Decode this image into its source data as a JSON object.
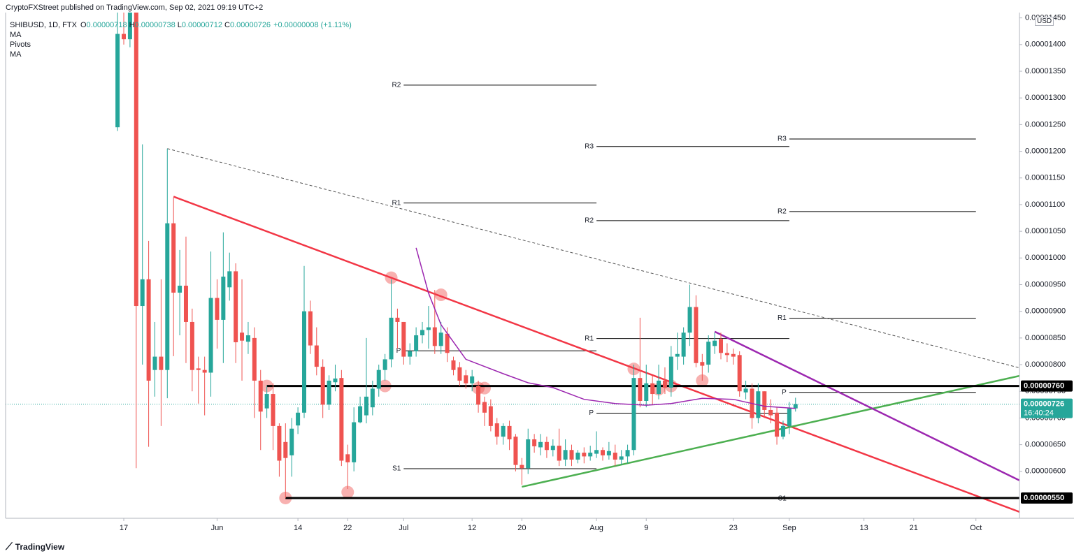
{
  "header": "CryptoFXStreet published on TradingView.com, Sep 02, 2021 09:19 UTC+2",
  "footer": "TradingView",
  "chart_data": {
    "type": "candlestick",
    "symbol": "SHIBUSD, 1D, FTX",
    "ohlc_legend": [
      {
        "label": "O",
        "value": "0.00000718"
      },
      {
        "label": "H",
        "value": "0.00000738"
      },
      {
        "label": "L",
        "value": "0.00000712"
      },
      {
        "label": "C",
        "value": "0.00000726"
      }
    ],
    "change": "+0.00000008 (+1.11%)",
    "indicators": [
      "MA",
      "Pivots",
      "MA"
    ],
    "currency": "USD",
    "x": [
      "2021-05-16",
      "2021-05-17",
      "2021-05-18",
      "2021-05-19",
      "2021-05-20",
      "2021-05-21",
      "2021-05-22",
      "2021-05-23",
      "2021-05-24",
      "2021-05-25",
      "2021-05-26",
      "2021-05-27",
      "2021-05-28",
      "2021-05-29",
      "2021-05-30",
      "2021-05-31",
      "2021-06-01",
      "2021-06-02",
      "2021-06-03",
      "2021-06-04",
      "2021-06-05",
      "2021-06-06",
      "2021-06-07",
      "2021-06-08",
      "2021-06-09",
      "2021-06-10",
      "2021-06-11",
      "2021-06-12",
      "2021-06-13",
      "2021-06-14",
      "2021-06-15",
      "2021-06-16",
      "2021-06-17",
      "2021-06-18",
      "2021-06-19",
      "2021-06-20",
      "2021-06-21",
      "2021-06-22",
      "2021-06-23",
      "2021-06-24",
      "2021-06-25",
      "2021-06-26",
      "2021-06-27",
      "2021-06-28",
      "2021-06-29",
      "2021-06-30",
      "2021-07-01",
      "2021-07-02",
      "2021-07-03",
      "2021-07-04",
      "2021-07-05",
      "2021-07-06",
      "2021-07-07",
      "2021-07-08",
      "2021-07-09",
      "2021-07-10",
      "2021-07-11",
      "2021-07-12",
      "2021-07-13",
      "2021-07-14",
      "2021-07-15",
      "2021-07-16",
      "2021-07-17",
      "2021-07-18",
      "2021-07-19",
      "2021-07-20",
      "2021-07-21",
      "2021-07-22",
      "2021-07-23",
      "2021-07-24",
      "2021-07-25",
      "2021-07-26",
      "2021-07-27",
      "2021-07-28",
      "2021-07-29",
      "2021-07-30",
      "2021-07-31",
      "2021-08-01",
      "2021-08-02",
      "2021-08-03",
      "2021-08-04",
      "2021-08-05",
      "2021-08-06",
      "2021-08-07",
      "2021-08-08",
      "2021-08-09",
      "2021-08-10",
      "2021-08-11",
      "2021-08-12",
      "2021-08-13",
      "2021-08-14",
      "2021-08-15",
      "2021-08-16",
      "2021-08-17",
      "2021-08-18",
      "2021-08-19",
      "2021-08-20",
      "2021-08-21",
      "2021-08-22",
      "2021-08-23",
      "2021-08-24",
      "2021-08-25",
      "2021-08-26",
      "2021-08-27",
      "2021-08-28",
      "2021-08-29",
      "2021-08-30",
      "2021-08-31",
      "2021-09-01",
      "2021-09-02"
    ],
    "open": [
      1.245e-05,
      1.42e-05,
      1.41e-05,
      1.47e-05,
      9.1e-06,
      9.6e-06,
      7.9e-06,
      8.15e-06,
      7.9e-06,
      1.065e-05,
      9.35e-06,
      9.48e-06,
      8.8e-06,
      7.93e-06,
      7.9e-06,
      7.85e-06,
      9.25e-06,
      8.84e-06,
      9.45e-06,
      9.75e-06,
      8.6e-06,
      8.43e-06,
      8.5e-06,
      7.7e-06,
      7.18e-06,
      7.45e-06,
      6.85e-06,
      6.55e-06,
      6.3e-06,
      6.86e-06,
      7.1e-06,
      9e-06,
      8.36e-06,
      7.96e-06,
      7.25e-06,
      7.67e-06,
      7.75e-06,
      6.32e-06,
      6.17e-06,
      6.92e-06,
      7.05e-06,
      7.2e-06,
      7.55e-06,
      7.9e-06,
      8.1e-06,
      8.88e-06,
      8.8e-06,
      8.15e-06,
      8.25e-06,
      8.55e-06,
      8.65e-06,
      8.7e-06,
      8.35e-06,
      8.58e-06,
      8.08e-06,
      7.95e-06,
      7.8e-06,
      7.65e-06,
      7.6e-06,
      7.3e-06,
      7.22e-06,
      6.9e-06,
      6.65e-06,
      6.85e-06,
      6.65e-06,
      6.12e-06,
      6.06e-06,
      6.6e-06,
      6.45e-06,
      6.55e-06,
      6.4e-06,
      6.48e-06,
      6.22e-06,
      6.4e-06,
      6.22e-06,
      6.35e-06,
      6.28e-06,
      6.33e-06,
      6.4e-06,
      6.3e-06,
      6.35e-06,
      6.22e-06,
      6.28e-06,
      6.4e-06,
      7.75e-06,
      7.32e-06,
      7.65e-06,
      7.45e-06,
      7.7e-06,
      7.57e-06,
      8.15e-06,
      8.15e-06,
      8.6e-06,
      9.08e-06,
      8.05e-06,
      8e-06,
      8.35e-06,
      8.48e-06,
      8.22e-06,
      8.2e-06,
      8.18e-06,
      7.48e-06,
      7.55e-06,
      7e-06,
      7.5e-06,
      7.15e-06,
      7.1e-06,
      6.65e-06,
      6.85e-06,
      7.18e-06
    ],
    "high": [
      1.48e-05,
      1.46e-05,
      1.48e-05,
      1.48e-05,
      1.213e-05,
      1.032e-05,
      8.8e-06,
      9.6e-06,
      1.205e-05,
      1.113e-05,
      1.015e-05,
      1.04e-05,
      9.05e-06,
      8.15e-06,
      8.15e-06,
      1.012e-05,
      9.6e-06,
      1.048e-05,
      1.01e-05,
      9.9e-06,
      9.6e-06,
      8.8e-06,
      8.7e-06,
      7.9e-06,
      7.6e-06,
      7.65e-06,
      6.9e-06,
      6.9e-06,
      7e-06,
      7.2e-06,
      9.85e-06,
      9.2e-06,
      8.7e-06,
      8.1e-06,
      7.8e-06,
      8e-06,
      7.9e-06,
      6.5e-06,
      7.2e-06,
      7.4e-06,
      8.5e-06,
      7.7e-06,
      8e-06,
      8.2e-06,
      9.6e-06,
      9.05e-06,
      8.8e-06,
      8.4e-06,
      8.7e-06,
      8.8e-06,
      9.1e-06,
      9.4e-06,
      8.8e-06,
      8.7e-06,
      8.15e-06,
      8.05e-06,
      7.9e-06,
      7.9e-06,
      7.7e-06,
      7.4e-06,
      7.35e-06,
      7e-06,
      6.9e-06,
      6.95e-06,
      6.7e-06,
      6.25e-06,
      6.8e-06,
      6.7e-06,
      6.7e-06,
      6.65e-06,
      6.6e-06,
      6.8e-06,
      6.6e-06,
      6.5e-06,
      6.4e-06,
      6.45e-06,
      6.48e-06,
      6.75e-06,
      6.45e-06,
      6.55e-06,
      6.5e-06,
      6.4e-06,
      6.5e-06,
      8e-06,
      8.88e-06,
      8e-06,
      7.8e-06,
      8e-06,
      7.95e-06,
      8.35e-06,
      8.6e-06,
      8.7e-06,
      9.5e-06,
      9.3e-06,
      8.2e-06,
      8.55e-06,
      8.6e-06,
      8.6e-06,
      8.4e-06,
      8.3e-06,
      8.25e-06,
      7.7e-06,
      7.65e-06,
      7.65e-06,
      7.5e-06,
      7.35e-06,
      7.2e-06,
      6.95e-06,
      7.3e-06,
      7.38e-06
    ],
    "low": [
      1.238e-05,
      1.4e-05,
      1.395e-05,
      6.06e-06,
      8e-06,
      6.46e-06,
      7.4e-06,
      6.85e-06,
      7.37e-06,
      8.16e-06,
      8.55e-06,
      8.03e-06,
      7.5e-06,
      7.27e-06,
      7.05e-06,
      7.4e-06,
      8.3e-06,
      8.03e-06,
      9.2e-06,
      8.03e-06,
      7.7e-06,
      8.2e-06,
      7e-06,
      6.4e-06,
      7e-06,
      6.4e-06,
      5.9e-06,
      5.5e-06,
      5.9e-06,
      6.7e-06,
      7e-06,
      8.2e-06,
      7.8e-06,
      7e-06,
      7.15e-06,
      7.5e-06,
      6.1e-06,
      5.67e-06,
      6e-06,
      6.9e-06,
      6.9e-06,
      7.05e-06,
      7.4e-06,
      7.7e-06,
      7.95e-06,
      8.3e-06,
      8e-06,
      8e-06,
      8.15e-06,
      8.4e-06,
      8.3e-06,
      8.2e-06,
      8.2e-06,
      8.05e-06,
      7.8e-06,
      7.6e-06,
      7.55e-06,
      7.5e-06,
      7.1e-06,
      6.85e-06,
      6.75e-06,
      6.5e-06,
      6.5e-06,
      6.4e-06,
      6e-06,
      5.75e-06,
      5.95e-06,
      6.35e-06,
      6.3e-06,
      6.25e-06,
      6.28e-06,
      6.1e-06,
      6.1e-06,
      6.1e-06,
      6.15e-06,
      6.15e-06,
      6.2e-06,
      6.25e-06,
      6.2e-06,
      6.22e-06,
      6.1e-06,
      6.12e-06,
      6.15e-06,
      6.3e-06,
      7.2e-06,
      7.2e-06,
      7.25e-06,
      7.35e-06,
      7.45e-06,
      7.4e-06,
      7.9e-06,
      8e-06,
      8.35e-06,
      7.95e-06,
      7.7e-06,
      7.85e-06,
      8.2e-06,
      8.1e-06,
      8.05e-06,
      8e-06,
      7.4e-06,
      7.35e-06,
      6.8e-06,
      6.9e-06,
      7e-06,
      6.9e-06,
      6.5e-06,
      6.6e-06,
      6.7e-06,
      7.12e-06
    ],
    "close": [
      1.42e-05,
      1.41e-05,
      1.47e-05,
      9.1e-06,
      9.6e-06,
      7.7e-06,
      8.15e-06,
      7.9e-06,
      1.065e-05,
      9.35e-06,
      9.48e-06,
      8.8e-06,
      7.9e-06,
      7.9e-06,
      7.85e-06,
      9.25e-06,
      8.84e-06,
      9.65e-06,
      9.75e-06,
      8.42e-06,
      8.45e-06,
      8.55e-06,
      7.7e-06,
      7.12e-06,
      7.45e-06,
      6.85e-06,
      6.2e-06,
      6.25e-06,
      6.8e-06,
      7.1e-06,
      9e-06,
      8.36e-06,
      7.96e-06,
      7.25e-06,
      7.7e-06,
      7.74e-06,
      6.2e-06,
      6.17e-06,
      6.92e-06,
      7.22e-06,
      7.4e-06,
      7.55e-06,
      7.9e-06,
      8.1e-06,
      8.88e-06,
      8.8e-06,
      8.15e-06,
      8.25e-06,
      8.55e-06,
      8.65e-06,
      8.7e-06,
      8.35e-06,
      8.6e-06,
      8.22e-06,
      7.9e-06,
      7.7e-06,
      7.65e-06,
      7.78e-06,
      7.25e-06,
      7.1e-06,
      6.85e-06,
      6.65e-06,
      6.85e-06,
      6.6e-06,
      6.12e-06,
      6.06e-06,
      6.6e-06,
      6.47e-06,
      6.55e-06,
      6.4e-06,
      6.48e-06,
      6.2e-06,
      6.4e-06,
      6.22e-06,
      6.35e-06,
      6.28e-06,
      6.35e-06,
      6.4e-06,
      6.3e-06,
      6.38e-06,
      6.22e-06,
      6.28e-06,
      6.4e-06,
      7.75e-06,
      7.32e-06,
      7.65e-06,
      7.45e-06,
      7.7e-06,
      7.57e-06,
      8.15e-06,
      8.2e-06,
      8.6e-06,
      9.08e-06,
      8.03e-06,
      7.98e-06,
      8.43e-06,
      8.45e-06,
      8.22e-06,
      8.18e-06,
      8.15e-06,
      7.5e-06,
      7.55e-06,
      7e-06,
      7.5e-06,
      7.15e-06,
      7.05e-06,
      6.65e-06,
      6.85e-06,
      7.18e-06,
      7.26e-06
    ],
    "up_color": "#26a69a",
    "down_color": "#ef5350",
    "xlim": [
      "2021-04-28",
      "2021-10-08"
    ],
    "xticks": [
      {
        "value": "2021-05-17",
        "label": "17"
      },
      {
        "value": "2021-06-01",
        "label": "Jun"
      },
      {
        "value": "2021-06-14",
        "label": "14"
      },
      {
        "value": "2021-06-22",
        "label": "22"
      },
      {
        "value": "2021-07-01",
        "label": "Jul"
      },
      {
        "value": "2021-07-12",
        "label": "12"
      },
      {
        "value": "2021-07-20",
        "label": "20"
      },
      {
        "value": "2021-08-01",
        "label": "Aug"
      },
      {
        "value": "2021-08-09",
        "label": "9"
      },
      {
        "value": "2021-08-23",
        "label": "23"
      },
      {
        "value": "2021-09-01",
        "label": "Sep"
      },
      {
        "value": "2021-09-13",
        "label": "13"
      },
      {
        "value": "2021-09-21",
        "label": "21"
      },
      {
        "value": "2021-10-01",
        "label": "Oct"
      }
    ],
    "ylim": [
      5.12e-06,
      1.46e-05
    ],
    "yticks": [
      {
        "value": 1.45e-05,
        "label": "0.00001450"
      },
      {
        "value": 1.4e-05,
        "label": "0.00001400"
      },
      {
        "value": 1.35e-05,
        "label": "0.00001350"
      },
      {
        "value": 1.3e-05,
        "label": "0.00001300"
      },
      {
        "value": 1.25e-05,
        "label": "0.00001250"
      },
      {
        "value": 1.2e-05,
        "label": "0.00001200"
      },
      {
        "value": 1.15e-05,
        "label": "0.00001150"
      },
      {
        "value": 1.1e-05,
        "label": "0.00001100"
      },
      {
        "value": 1.05e-05,
        "label": "0.00001050"
      },
      {
        "value": 1e-05,
        "label": "0.00001000"
      },
      {
        "value": 9.5e-06,
        "label": "0.00000950"
      },
      {
        "value": 9e-06,
        "label": "0.00000900"
      },
      {
        "value": 8.5e-06,
        "label": "0.00000850"
      },
      {
        "value": 8e-06,
        "label": "0.00000800"
      },
      {
        "value": 7.5e-06,
        "label": "0.00000750"
      },
      {
        "value": 7e-06,
        "label": "0.00000700"
      },
      {
        "value": 6.5e-06,
        "label": "0.00000650"
      },
      {
        "value": 6e-06,
        "label": "0.00000600"
      }
    ],
    "grid": false,
    "moving_average": {
      "color": "#9c27b0",
      "x": [
        "2021-07-03",
        "2021-07-05",
        "2021-07-07",
        "2021-07-11",
        "2021-07-17",
        "2021-07-21",
        "2021-07-25",
        "2021-07-30",
        "2021-08-04",
        "2021-08-09",
        "2021-08-13",
        "2021-08-18",
        "2021-08-23",
        "2021-08-28",
        "2021-09-02"
      ],
      "values": [
        1.019e-05,
        9.34e-06,
        8.75e-06,
        8.1e-06,
        7.83e-06,
        7.66e-06,
        7.57e-06,
        7.35e-06,
        7.27e-06,
        7.24e-06,
        7.27e-06,
        7.37e-06,
        7.35e-06,
        7.22e-06,
        7.18e-06
      ]
    },
    "trend_lines": [
      {
        "color": "#555555",
        "dashed": true,
        "x": [
          "2021-05-24",
          "2021-10-08"
        ],
        "values": [
          1.205e-05,
          7.94e-06
        ]
      },
      {
        "color": "#f23645",
        "dashed": false,
        "x": [
          "2021-05-25",
          "2021-10-08"
        ],
        "values": [
          1.115e-05,
          5.24e-06
        ]
      },
      {
        "color": "#4caf50",
        "dashed": false,
        "x": [
          "2021-07-20",
          "2021-10-08"
        ],
        "values": [
          5.71e-06,
          7.79e-06
        ]
      },
      {
        "color": "#9c27b0",
        "dashed": false,
        "x": [
          "2021-08-20",
          "2021-10-08"
        ],
        "values": [
          8.62e-06,
          5.83e-06
        ]
      }
    ],
    "levels": [
      {
        "value": 7.6e-06,
        "label": "0.00000760",
        "start": "2021-06-09"
      },
      {
        "value": 5.5e-06,
        "label": "0.00000550",
        "start": "2021-06-12"
      }
    ],
    "pivots": [
      {
        "label": "R2",
        "value": 1.324e-05,
        "start": "2021-07-01",
        "end": "2021-08-01"
      },
      {
        "label": "R1",
        "value": 1.103e-05,
        "start": "2021-07-01",
        "end": "2021-08-01"
      },
      {
        "label": "P",
        "value": 8.26e-06,
        "start": "2021-07-01",
        "end": "2021-08-01"
      },
      {
        "label": "S1",
        "value": 6.05e-06,
        "start": "2021-07-01",
        "end": "2021-08-01"
      },
      {
        "label": "R3",
        "value": 1.209e-05,
        "start": "2021-08-01",
        "end": "2021-09-01"
      },
      {
        "label": "R2",
        "value": 1.07e-05,
        "start": "2021-08-01",
        "end": "2021-09-01"
      },
      {
        "label": "R1",
        "value": 8.49e-06,
        "start": "2021-08-01",
        "end": "2021-09-01"
      },
      {
        "label": "P",
        "value": 7.09e-06,
        "start": "2021-08-01",
        "end": "2021-09-01"
      },
      {
        "label": "R3",
        "value": 1.223e-05,
        "start": "2021-09-01",
        "end": "2021-10-01"
      },
      {
        "label": "R2",
        "value": 1.087e-05,
        "start": "2021-09-01",
        "end": "2021-10-01"
      },
      {
        "label": "R1",
        "value": 8.87e-06,
        "start": "2021-09-01",
        "end": "2021-10-01"
      },
      {
        "label": "P",
        "value": 7.48e-06,
        "start": "2021-09-01",
        "end": "2021-10-01"
      },
      {
        "label": "S1",
        "value": 5.49e-06,
        "start": "2021-09-01",
        "end": "2021-10-01"
      }
    ],
    "touches": [
      {
        "x": "2021-06-12",
        "value": 5.5e-06
      },
      {
        "x": "2021-06-22",
        "value": 5.61e-06
      },
      {
        "x": "2021-06-09",
        "value": 7.6e-06
      },
      {
        "x": "2021-06-28",
        "value": 7.6e-06
      },
      {
        "x": "2021-06-29",
        "value": 9.63e-06
      },
      {
        "x": "2021-07-07",
        "value": 9.31e-06
      },
      {
        "x": "2021-07-13",
        "value": 7.56e-06
      },
      {
        "x": "2021-07-14",
        "value": 7.56e-06
      },
      {
        "x": "2021-08-07",
        "value": 7.92e-06
      },
      {
        "x": "2021-08-11",
        "value": 7.54e-06
      },
      {
        "x": "2021-08-13",
        "value": 7.6e-06
      },
      {
        "x": "2021-08-18",
        "value": 7.7e-06
      }
    ],
    "last_price": {
      "value": 7.26e-06,
      "label": "0.00000726",
      "countdown": "16:40:24"
    }
  }
}
